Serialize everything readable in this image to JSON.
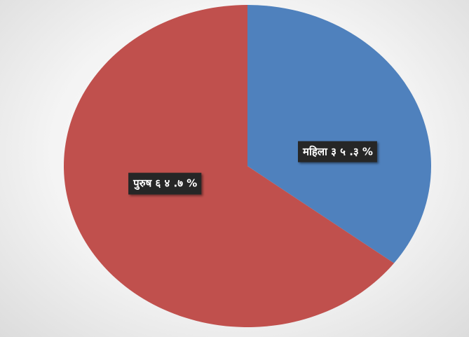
{
  "chart_data": {
    "type": "pie",
    "title": "",
    "slices": [
      {
        "label": "महिला",
        "value": 35.3,
        "data_label": "महिला ३ ५ .३ %",
        "color": "#4f81bd"
      },
      {
        "label": "पुरुष",
        "value": 64.7,
        "data_label": "पुरुष ६ ४ .७ %",
        "color": "#c0504d"
      }
    ],
    "start_angle_deg": 0,
    "direction": "clockwise",
    "legend": "none",
    "label_box_color": "#262626"
  }
}
